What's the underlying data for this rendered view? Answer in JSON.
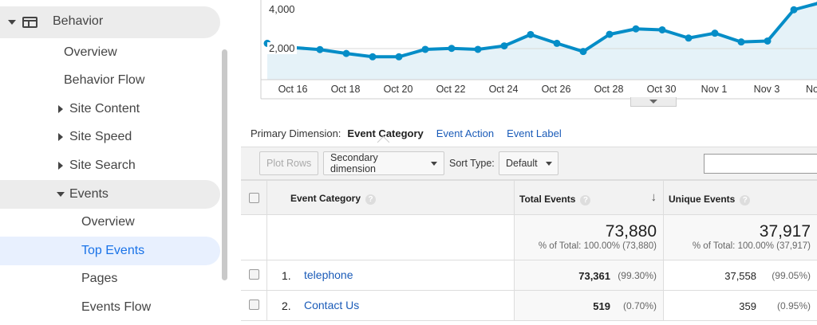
{
  "sidebar": {
    "section_title": "Behavior",
    "items": [
      {
        "label": "Overview"
      },
      {
        "label": "Behavior Flow"
      },
      {
        "label": "Site Content"
      },
      {
        "label": "Site Speed"
      },
      {
        "label": "Site Search"
      },
      {
        "label": "Events"
      },
      {
        "label": "Overview"
      },
      {
        "label": "Top Events"
      },
      {
        "label": "Pages"
      },
      {
        "label": "Events Flow"
      }
    ]
  },
  "chart_data": {
    "type": "area",
    "yticks": [
      "4,000",
      "2,000"
    ],
    "xticks": [
      "Oct 16",
      "Oct 18",
      "Oct 20",
      "Oct 22",
      "Oct 24",
      "Oct 26",
      "Oct 28",
      "Oct 30",
      "Nov 1",
      "Nov 3",
      "No"
    ],
    "x": [
      "Oct 15",
      "Oct 16",
      "Oct 17",
      "Oct 18",
      "Oct 19",
      "Oct 20",
      "Oct 21",
      "Oct 22",
      "Oct 23",
      "Oct 24",
      "Oct 25",
      "Oct 26",
      "Oct 27",
      "Oct 28",
      "Oct 29",
      "Oct 30",
      "Oct 31",
      "Nov 1",
      "Nov 2",
      "Nov 3",
      "Nov 4",
      "Nov 5"
    ],
    "values": [
      2270,
      2050,
      1950,
      1750,
      1580,
      1580,
      1960,
      2010,
      1960,
      2140,
      2720,
      2270,
      1850,
      2730,
      3010,
      2960,
      2540,
      2790,
      2340,
      2390,
      3990,
      4350
    ],
    "ylim": [
      0,
      4500
    ],
    "line_color": "#058dc7",
    "fill_color": "#e5f2f8"
  },
  "dimension_bar": {
    "label": "Primary Dimension:",
    "selected": "Event Category",
    "options": [
      "Event Action",
      "Event Label"
    ]
  },
  "toolbar": {
    "plot_rows": "Plot Rows",
    "secondary_dimension": "Secondary dimension",
    "sort_type_label": "Sort Type:",
    "sort_type_value": "Default"
  },
  "table": {
    "headers": {
      "event_category": "Event Category",
      "total_events": "Total Events",
      "unique_events": "Unique Events"
    },
    "totals": {
      "total_events": "73,880",
      "total_events_pct": "% of Total: 100.00% (73,880)",
      "unique_events": "37,917",
      "unique_events_pct": "% of Total: 100.00% (37,917)"
    },
    "rows": [
      {
        "rank": "1.",
        "category": "telephone",
        "total": "73,361",
        "total_pct": "(99.30%)",
        "unique": "37,558",
        "unique_pct": "(99.05%)"
      },
      {
        "rank": "2.",
        "category": "Contact Us",
        "total": "519",
        "total_pct": "(0.70%)",
        "unique": "359",
        "unique_pct": "(0.95%)"
      }
    ]
  }
}
